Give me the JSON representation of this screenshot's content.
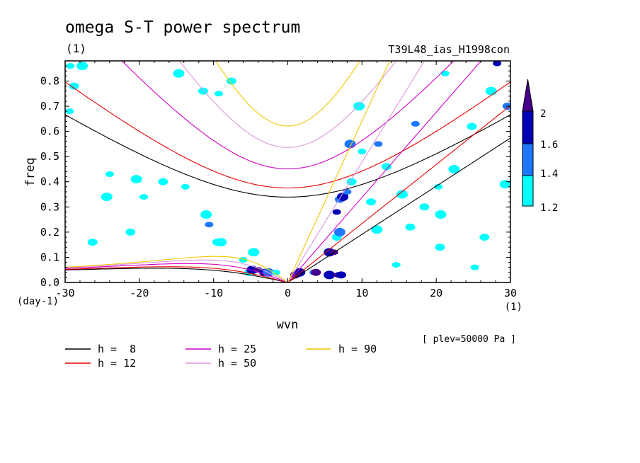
{
  "chart_data": {
    "type": "contour",
    "title": "omega S-T power spectrum",
    "title_unit": "(1)",
    "subtitle_right": "T39L48_ias_H1998con",
    "xlabel": "wvn",
    "x_unit": "(1)",
    "ylabel": "freq",
    "y_unit": "(day-1)",
    "footnote": "[ plev=50000 Pa ]",
    "xlim": [
      -30,
      30
    ],
    "ylim": [
      0,
      0.88
    ],
    "x_ticks": [
      "-30",
      "-20",
      "-10",
      "0",
      "10",
      "20",
      "30"
    ],
    "y_ticks": [
      "0.0",
      "0.1",
      "0.2",
      "0.3",
      "0.4",
      "0.5",
      "0.6",
      "0.7",
      "0.8"
    ],
    "colorbar": {
      "levels": [
        "1.2",
        "1.4",
        "1.6",
        "2"
      ],
      "colors": [
        "#00ffff",
        "#1e78ff",
        "#0000b4",
        "#46008c"
      ]
    },
    "dispersion_curves": [
      {
        "label": "h =  8",
        "h": 8,
        "color": "#000000"
      },
      {
        "label": "h = 12",
        "h": 12,
        "color": "#e60000"
      },
      {
        "label": "h = 25",
        "h": 25,
        "color": "#d200c8"
      },
      {
        "label": "h = 50",
        "h": 50,
        "color": "#dc96dc"
      },
      {
        "label": "h = 90",
        "h": 90,
        "color": "#f0c800"
      }
    ],
    "contour_blobs": [
      {
        "x": -29.3,
        "y": 0.86,
        "level": 1
      },
      {
        "x": -28.8,
        "y": 0.78,
        "level": 1
      },
      {
        "x": -27.7,
        "y": 0.86,
        "level": 1
      },
      {
        "x": -29.4,
        "y": 0.68,
        "level": 1
      },
      {
        "x": -26.3,
        "y": 0.16,
        "level": 1
      },
      {
        "x": -24.4,
        "y": 0.34,
        "level": 1
      },
      {
        "x": -24.0,
        "y": 0.43,
        "level": 1
      },
      {
        "x": -21.2,
        "y": 0.2,
        "level": 1
      },
      {
        "x": -20.4,
        "y": 0.41,
        "level": 1
      },
      {
        "x": -19.4,
        "y": 0.34,
        "level": 1
      },
      {
        "x": -16.8,
        "y": 0.4,
        "level": 1
      },
      {
        "x": -14.7,
        "y": 0.83,
        "level": 1
      },
      {
        "x": -13.8,
        "y": 0.38,
        "level": 1
      },
      {
        "x": -11.4,
        "y": 0.76,
        "level": 1
      },
      {
        "x": -11.0,
        "y": 0.27,
        "level": 1
      },
      {
        "x": -10.6,
        "y": 0.23,
        "level": 2
      },
      {
        "x": -9.5,
        "y": 0.16,
        "level": 1
      },
      {
        "x": -9.0,
        "y": 0.16,
        "level": 1
      },
      {
        "x": -9.3,
        "y": 0.75,
        "level": 1
      },
      {
        "x": -7.6,
        "y": 0.8,
        "level": 1
      },
      {
        "x": -4.6,
        "y": 0.12,
        "level": 1
      },
      {
        "x": -6.0,
        "y": 0.09,
        "level": 1
      },
      {
        "x": -5.2,
        "y": 0.04,
        "level": 1
      },
      {
        "x": -4.8,
        "y": 0.05,
        "level": 3
      },
      {
        "x": -4.0,
        "y": 0.05,
        "level": 4
      },
      {
        "x": -3.2,
        "y": 0.04,
        "level": 3
      },
      {
        "x": -2.6,
        "y": 0.04,
        "level": 2
      },
      {
        "x": -1.6,
        "y": 0.04,
        "level": 1
      },
      {
        "x": 1.0,
        "y": 0.03,
        "level": 4
      },
      {
        "x": 1.6,
        "y": 0.04,
        "level": 3
      },
      {
        "x": 3.5,
        "y": 0.04,
        "level": 2
      },
      {
        "x": 3.8,
        "y": 0.04,
        "level": 4
      },
      {
        "x": 5.6,
        "y": 0.03,
        "level": 3
      },
      {
        "x": 6.8,
        "y": 0.03,
        "level": 4
      },
      {
        "x": 7.2,
        "y": 0.03,
        "level": 3
      },
      {
        "x": 5.6,
        "y": 0.12,
        "level": 3
      },
      {
        "x": 6.2,
        "y": 0.12,
        "level": 4
      },
      {
        "x": 6.6,
        "y": 0.18,
        "level": 1
      },
      {
        "x": 7.0,
        "y": 0.2,
        "level": 2
      },
      {
        "x": 6.6,
        "y": 0.28,
        "level": 3
      },
      {
        "x": 7.0,
        "y": 0.33,
        "level": 2
      },
      {
        "x": 7.4,
        "y": 0.34,
        "level": 3
      },
      {
        "x": 8.0,
        "y": 0.36,
        "level": 2
      },
      {
        "x": 8.6,
        "y": 0.4,
        "level": 1
      },
      {
        "x": 8.4,
        "y": 0.55,
        "level": 2
      },
      {
        "x": 10.0,
        "y": 0.52,
        "level": 1
      },
      {
        "x": 11.2,
        "y": 0.32,
        "level": 1
      },
      {
        "x": 12.0,
        "y": 0.21,
        "level": 1
      },
      {
        "x": 12.2,
        "y": 0.55,
        "level": 2
      },
      {
        "x": 13.3,
        "y": 0.46,
        "level": 1
      },
      {
        "x": 15.4,
        "y": 0.35,
        "level": 1
      },
      {
        "x": 17.2,
        "y": 0.63,
        "level": 2
      },
      {
        "x": 18.4,
        "y": 0.3,
        "level": 1
      },
      {
        "x": 20.6,
        "y": 0.27,
        "level": 1
      },
      {
        "x": 20.3,
        "y": 0.38,
        "level": 1
      },
      {
        "x": 20.5,
        "y": 0.14,
        "level": 1
      },
      {
        "x": 22.4,
        "y": 0.45,
        "level": 1
      },
      {
        "x": 25.2,
        "y": 0.06,
        "level": 1
      },
      {
        "x": 26.5,
        "y": 0.18,
        "level": 1
      },
      {
        "x": 27.4,
        "y": 0.76,
        "level": 1
      },
      {
        "x": 28.2,
        "y": 0.87,
        "level": 3
      },
      {
        "x": 29.6,
        "y": 0.7,
        "level": 2
      },
      {
        "x": 29.3,
        "y": 0.39,
        "level": 1
      },
      {
        "x": 21.2,
        "y": 0.83,
        "level": 1
      },
      {
        "x": 24.8,
        "y": 0.62,
        "level": 1
      },
      {
        "x": 9.6,
        "y": 0.7,
        "level": 1
      },
      {
        "x": 14.6,
        "y": 0.07,
        "level": 1
      },
      {
        "x": 16.5,
        "y": 0.22,
        "level": 1
      }
    ]
  }
}
